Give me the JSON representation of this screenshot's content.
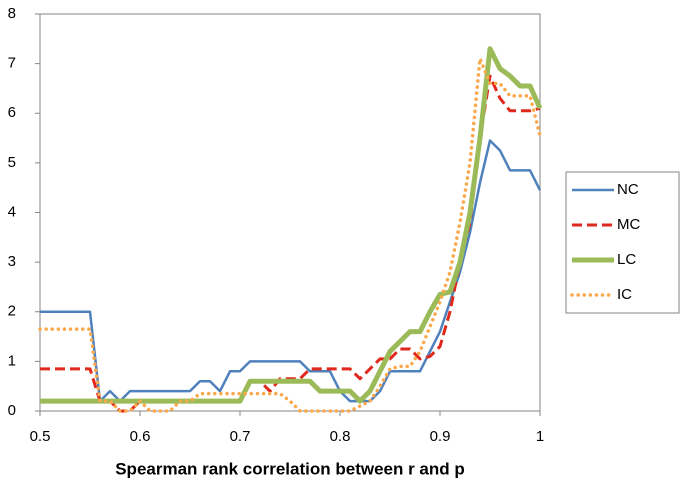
{
  "chart_data": {
    "type": "line",
    "x_label": "Spearman rank correlation between r and p",
    "x": [
      0.5,
      0.51,
      0.52,
      0.53,
      0.54,
      0.55,
      0.56,
      0.57,
      0.58,
      0.59,
      0.6,
      0.61,
      0.62,
      0.63,
      0.64,
      0.65,
      0.66,
      0.67,
      0.68,
      0.69,
      0.7,
      0.71,
      0.72,
      0.73,
      0.74,
      0.75,
      0.76,
      0.77,
      0.78,
      0.79,
      0.8,
      0.81,
      0.82,
      0.83,
      0.84,
      0.85,
      0.86,
      0.87,
      0.88,
      0.89,
      0.9,
      0.91,
      0.92,
      0.93,
      0.94,
      0.95,
      0.96,
      0.97,
      0.98,
      0.99,
      1
    ],
    "series": [
      {
        "name": "NC",
        "color": "#4f81bd",
        "style": "solid",
        "line_width": 2.5,
        "values": [
          2,
          2,
          2,
          2,
          2,
          2,
          0.2,
          0.4,
          0.2,
          0.4,
          0.4,
          0.4,
          0.4,
          0.4,
          0.4,
          0.4,
          0.6,
          0.6,
          0.4,
          0.8,
          0.8,
          1,
          1,
          1,
          1,
          1,
          1,
          0.8,
          0.8,
          0.8,
          0.4,
          0.2,
          0.2,
          0.2,
          0.4,
          0.8,
          0.8,
          0.8,
          0.8,
          1.2,
          1.6,
          2.2,
          2.8,
          3.6,
          4.6,
          5.45,
          5.25,
          4.85,
          4.85,
          4.85,
          4.45
        ]
      },
      {
        "name": "MC",
        "color": "#e0281c",
        "style": "dashed",
        "line_width": 3,
        "values": [
          0.85,
          0.85,
          0.85,
          0.85,
          0.85,
          0.85,
          0.2,
          0.2,
          0,
          0,
          0.2,
          0.2,
          0.2,
          0.2,
          0.2,
          0.2,
          0.2,
          0.2,
          0.2,
          0.2,
          0.2,
          0.6,
          0.6,
          0.4,
          0.65,
          0.65,
          0.65,
          0.85,
          0.85,
          0.85,
          0.85,
          0.85,
          0.65,
          0.85,
          1.05,
          1.05,
          1.25,
          1.25,
          1.05,
          1.1,
          1.3,
          2,
          3,
          3.8,
          5.5,
          6.75,
          6.3,
          6.05,
          6.05,
          6.05,
          6.1
        ]
      },
      {
        "name": "LC",
        "color": "#9bbb59",
        "style": "solid",
        "line_width": 5,
        "values": [
          0.2,
          0.2,
          0.2,
          0.2,
          0.2,
          0.2,
          0.2,
          0.2,
          0.2,
          0.2,
          0.2,
          0.2,
          0.2,
          0.2,
          0.2,
          0.2,
          0.2,
          0.2,
          0.2,
          0.2,
          0.2,
          0.6,
          0.6,
          0.6,
          0.6,
          0.6,
          0.6,
          0.6,
          0.4,
          0.4,
          0.4,
          0.4,
          0.2,
          0.4,
          0.8,
          1.2,
          1.4,
          1.6,
          1.6,
          2,
          2.35,
          2.4,
          3,
          4,
          5.5,
          7.3,
          6.9,
          6.75,
          6.55,
          6.55,
          6.1
        ]
      },
      {
        "name": "IC",
        "color": "#f9a94b",
        "style": "dotted",
        "line_width": 3.5,
        "values": [
          1.65,
          1.65,
          1.65,
          1.65,
          1.65,
          1.65,
          0.2,
          0.2,
          0,
          0,
          0.2,
          0,
          0,
          0,
          0.2,
          0.2,
          0.35,
          0.35,
          0.35,
          0.35,
          0.35,
          0.35,
          0.35,
          0.35,
          0.35,
          0.2,
          0,
          0,
          0,
          0,
          0,
          0,
          0.1,
          0.2,
          0.5,
          0.85,
          0.9,
          0.9,
          1.2,
          1.7,
          2.2,
          2.8,
          3.8,
          5,
          7.1,
          6.6,
          6.6,
          6.35,
          6.35,
          6.35,
          5.55
        ]
      }
    ],
    "xlim": [
      0.5,
      1
    ],
    "xticks": [
      0.5,
      0.6,
      0.7,
      0.8,
      0.9,
      1
    ],
    "ylim": [
      0,
      8
    ],
    "yticks": [
      0,
      1,
      2,
      3,
      4,
      5,
      6,
      7,
      8
    ],
    "legend": "right"
  }
}
